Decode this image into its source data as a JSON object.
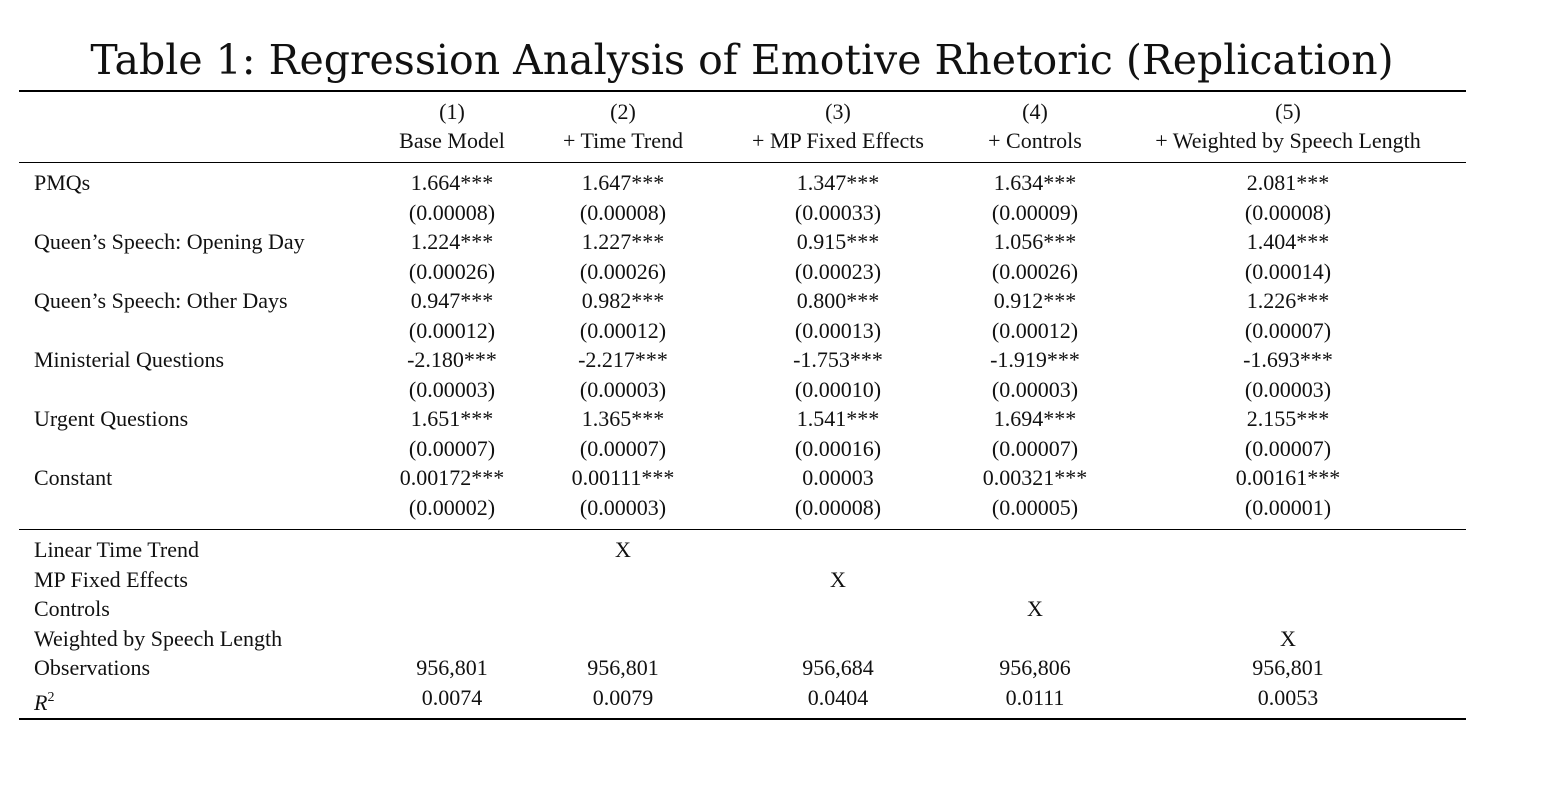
{
  "title": "Table 1: Regression Analysis of Emotive Rhetoric (Replication)",
  "columns": [
    {
      "num": "(1)",
      "name": "Base Model"
    },
    {
      "num": "(2)",
      "name": "+ Time Trend"
    },
    {
      "num": "(3)",
      "name": "+ MP Fixed Effects"
    },
    {
      "num": "(4)",
      "name": "+ Controls"
    },
    {
      "num": "(5)",
      "name": "+ Weighted by Speech Length"
    }
  ],
  "coef_rows": [
    {
      "label": "PMQs",
      "coefs": [
        "1.664***",
        "1.647***",
        "1.347***",
        "1.634***",
        "2.081***"
      ],
      "ses": [
        "(0.00008)",
        "(0.00008)",
        "(0.00033)",
        "(0.00009)",
        "(0.00008)"
      ]
    },
    {
      "label": "Queen’s Speech: Opening Day",
      "coefs": [
        "1.224***",
        "1.227***",
        "0.915***",
        "1.056***",
        "1.404***"
      ],
      "ses": [
        "(0.00026)",
        "(0.00026)",
        "(0.00023)",
        "(0.00026)",
        "(0.00014)"
      ]
    },
    {
      "label": "Queen’s Speech: Other Days",
      "coefs": [
        "0.947***",
        "0.982***",
        "0.800***",
        "0.912***",
        "1.226***"
      ],
      "ses": [
        "(0.00012)",
        "(0.00012)",
        "(0.00013)",
        "(0.00012)",
        "(0.00007)"
      ]
    },
    {
      "label": "Ministerial Questions",
      "coefs": [
        "-2.180***",
        "-2.217***",
        "-1.753***",
        "-1.919***",
        "-1.693***"
      ],
      "ses": [
        "(0.00003)",
        "(0.00003)",
        "(0.00010)",
        "(0.00003)",
        "(0.00003)"
      ]
    },
    {
      "label": "Urgent Questions",
      "coefs": [
        "1.651***",
        "1.365***",
        "1.541***",
        "1.694***",
        "2.155***"
      ],
      "ses": [
        "(0.00007)",
        "(0.00007)",
        "(0.00016)",
        "(0.00007)",
        "(0.00007)"
      ]
    },
    {
      "label": "Constant",
      "coefs": [
        "0.00172***",
        "0.00111***",
        "0.00003",
        "0.00321***",
        "0.00161***"
      ],
      "ses": [
        "(0.00002)",
        "(0.00003)",
        "(0.00008)",
        "(0.00005)",
        "(0.00001)"
      ]
    }
  ],
  "spec_rows": [
    {
      "label": "Linear Time Trend",
      "marks": [
        "",
        "X",
        "",
        "",
        ""
      ]
    },
    {
      "label": "MP Fixed Effects",
      "marks": [
        "",
        "",
        "X",
        "",
        ""
      ]
    },
    {
      "label": "Controls",
      "marks": [
        "",
        "",
        "",
        "X",
        ""
      ]
    },
    {
      "label": "Weighted by Speech Length",
      "marks": [
        "",
        "",
        "",
        "",
        "X"
      ]
    }
  ],
  "observations": {
    "label": "Observations",
    "values": [
      "956,801",
      "956,801",
      "956,684",
      "956,806",
      "956,801"
    ]
  },
  "r2": {
    "label_base": "R",
    "label_sup": "2",
    "values": [
      "0.0074",
      "0.0079",
      "0.0404",
      "0.0111",
      "0.0053"
    ]
  }
}
